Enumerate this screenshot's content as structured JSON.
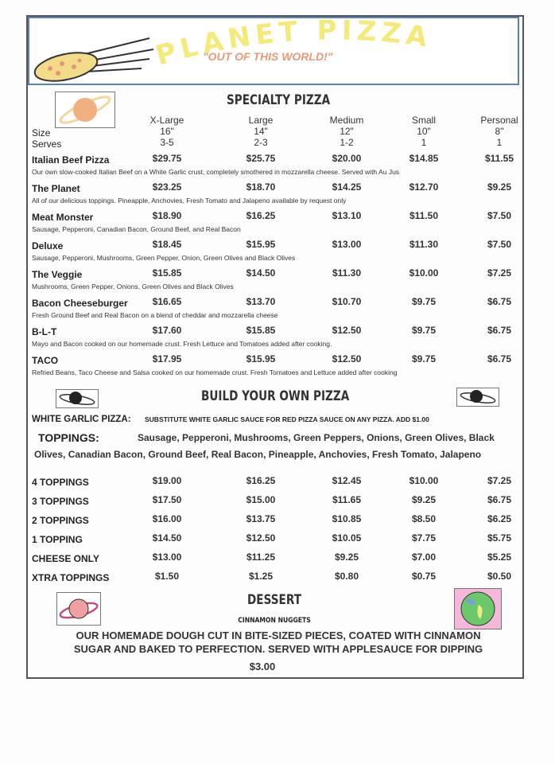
{
  "header": {
    "logo_text": "PLANET PIZZA",
    "tagline": "\"OUT OF THIS WORLD!\"",
    "logo_color": "#f3ea7a",
    "tagline_color": "#e59a7a",
    "border_color": "#5b7fc0"
  },
  "specialty": {
    "title": "SPECIALTY PIZZA",
    "size_label": "Size",
    "serves_label": "Serves",
    "columns": [
      {
        "name": "X-Large",
        "size": "16\"",
        "serves": "3-5"
      },
      {
        "name": "Large",
        "size": "14\"",
        "serves": "2-3"
      },
      {
        "name": "Medium",
        "size": "12\"",
        "serves": "1-2"
      },
      {
        "name": "Small",
        "size": "10\"",
        "serves": "1"
      },
      {
        "name": "Personal",
        "size": "8\"",
        "serves": "1"
      }
    ],
    "items": [
      {
        "name": "Italian Beef Pizza",
        "prices": [
          "$29.75",
          "$25.75",
          "$20.00",
          "$14.85",
          "$11.55"
        ],
        "desc": "Our own slow-cooked Italian Beef on a White Garlic crust, completely smothered in mozzarella cheese. Served with Au Jus"
      },
      {
        "name": "The Planet",
        "prices": [
          "$23.25",
          "$18.70",
          "$14.25",
          "$12.70",
          "$9.25"
        ],
        "desc": "All of our delicious toppings. Pineapple, Anchovies, Fresh Tomato and Jalapeno available by request only"
      },
      {
        "name": "Meat Monster",
        "prices": [
          "$18.90",
          "$16.25",
          "$13.10",
          "$11.50",
          "$7.50"
        ],
        "desc": "Sausage, Pepperoni, Canadian Bacon, Ground Beef, and Real Bacon"
      },
      {
        "name": "Deluxe",
        "prices": [
          "$18.45",
          "$15.95",
          "$13.00",
          "$11.30",
          "$7.50"
        ],
        "desc": "Sausage, Pepperoni, Mushrooms, Green Pepper, Onion, Green Olives and Black Olives"
      },
      {
        "name": "The Veggie",
        "prices": [
          "$15.85",
          "$14.50",
          "$11.30",
          "$10.00",
          "$7.25"
        ],
        "desc": "Mushrooms, Green Pepper, Onions, Green Olives and Black Olives"
      },
      {
        "name": "Bacon Cheeseburger",
        "prices": [
          "$16.65",
          "$13.70",
          "$10.70",
          "$9.75",
          "$6.75"
        ],
        "desc": "Fresh Ground Beef and Real Bacon on a blend of cheddar and mozzarella cheese"
      },
      {
        "name": "B-L-T",
        "prices": [
          "$17.60",
          "$15.85",
          "$12.50",
          "$9.75",
          "$6.75"
        ],
        "desc": "Mayo and Bacon cooked on our homemade crust. Fresh Lettuce and Tomatoes added after cooking."
      },
      {
        "name": "TACO",
        "prices": [
          "$17.95",
          "$15.95",
          "$12.50",
          "$9.75",
          "$6.75"
        ],
        "desc": "Refried Beans, Taco Cheese and Salsa cooked on our homemade crust.  Fresh Tomatoes and Lettuce added after cooking"
      }
    ]
  },
  "build": {
    "title": "BUILD YOUR OWN PIZZA",
    "white_garlic_label": "WHITE GARLIC PIZZA:",
    "white_garlic_text": "SUBSTITUTE WHITE GARLIC SAUCE FOR RED PIZZA SAUCE ON ANY PIZZA.   ADD $1.00",
    "toppings_label": "TOPPINGS:",
    "toppings_line1": "Sausage, Pepperoni, Mushrooms, Green Peppers, Onions, Green Olives, Black",
    "toppings_line2": "Olives, Canadian Bacon, Ground Beef, Real Bacon, Pineapple, Anchovies, Fresh Tomato, Jalapeno",
    "rows": [
      {
        "name": "4 TOPPINGS",
        "prices": [
          "$19.00",
          "$16.25",
          "$12.45",
          "$10.00",
          "$7.25"
        ]
      },
      {
        "name": "3 TOPPINGS",
        "prices": [
          "$17.50",
          "$15.00",
          "$11.65",
          "$9.25",
          "$6.75"
        ]
      },
      {
        "name": "2 TOPPINGS",
        "prices": [
          "$16.00",
          "$13.75",
          "$10.85",
          "$8.50",
          "$6.25"
        ]
      },
      {
        "name": "1 TOPPING",
        "prices": [
          "$14.50",
          "$12.50",
          "$10.05",
          "$7.75",
          "$5.75"
        ]
      },
      {
        "name": "CHEESE ONLY",
        "prices": [
          "$13.00",
          "$11.25",
          "$9.25",
          "$7.00",
          "$5.25"
        ]
      },
      {
        "name": "XTRA TOPPINGS",
        "prices": [
          "$1.50",
          "$1.25",
          "$0.80",
          "$0.75",
          "$0.50"
        ]
      }
    ]
  },
  "dessert": {
    "title": "DESSERT",
    "item": "CINNAMON NUGGETS",
    "line1": "OUR HOMEMADE DOUGH CUT IN BITE-SIZED PIECES, COATED WITH CINNAMON",
    "line2": "SUGAR AND BAKED TO PERFECTION. SERVED WITH APPLESAUCE FOR DIPPING",
    "price": "$3.00"
  }
}
